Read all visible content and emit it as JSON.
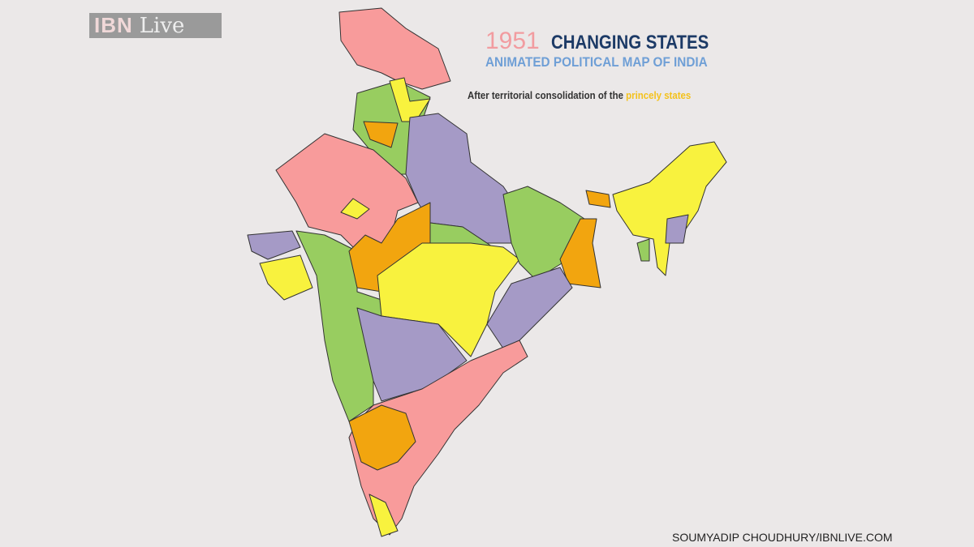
{
  "logo": {
    "brand": "IBN",
    "suffix": "Live"
  },
  "header": {
    "year": "1951",
    "title": "CHANGING STATES",
    "subtitle": "ANIMATED POLITICAL MAP OF INDIA",
    "note_prefix": "After territorial consolidation of the ",
    "note_highlight": "princely states"
  },
  "credit": "SOUMYADIP CHOUDHURY/IBNLIVE.COM",
  "colors": {
    "pink": "#f89b9b",
    "purple": "#a59ac6",
    "green": "#98cd60",
    "yellow": "#f8f23e",
    "orange": "#f2a50f",
    "background": "#ebe8e8"
  }
}
